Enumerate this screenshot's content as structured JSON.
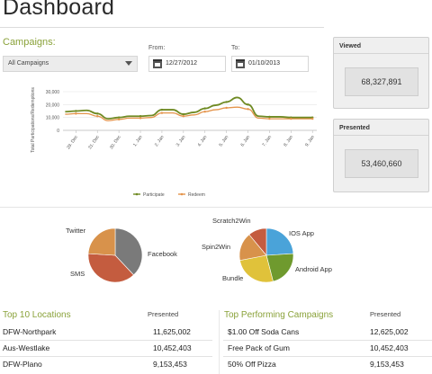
{
  "page": {
    "title": "Dashboard"
  },
  "campaigns": {
    "label": "Campaigns:",
    "selected": "All Campaigns",
    "from_label": "From:",
    "from_value": "12/27/2012",
    "to_label": "To:",
    "to_value": "01/10/2013"
  },
  "cards": {
    "viewed": {
      "title": "Viewed",
      "value": "68,327,891"
    },
    "presented": {
      "title": "Presented",
      "value": "53,460,660"
    }
  },
  "colors": {
    "accent": "#8aa23a",
    "participate": "#6f8a23",
    "redeem": "#e4944b"
  },
  "chart_data": {
    "type": "line",
    "categories": [
      "29. Dec",
      "31. Dec",
      "30. Dec",
      "1. Jan",
      "2. Jan",
      "3. Jan",
      "4. Jan",
      "5. Jan",
      "6. Jan",
      "7. Jan",
      "8. Jan",
      "9. Jan"
    ],
    "x_positions": [
      0,
      1,
      2,
      3,
      4,
      5,
      6,
      7,
      8,
      9,
      10,
      11
    ],
    "yticks": [
      "0",
      "10,000",
      "20,000",
      "30,000"
    ],
    "ylim": [
      0,
      30000
    ],
    "ylabel": "Total Participations/Redemptions",
    "xlabel": "",
    "grid": true,
    "legend": "bottom-center",
    "series": [
      {
        "name": "Participate",
        "x": [
          -0.5,
          0,
          0.5,
          1,
          1.5,
          2,
          2.5,
          3,
          3.5,
          4,
          4.5,
          5,
          5.5,
          6,
          6.5,
          7,
          7.5,
          8,
          8.5,
          9,
          9.5,
          10,
          10.5,
          11
        ],
        "values": [
          14500,
          15000,
          15500,
          13000,
          9000,
          10000,
          11000,
          11000,
          11500,
          16000,
          16000,
          12500,
          14000,
          17000,
          19500,
          22000,
          25500,
          20000,
          11000,
          10500,
          10500,
          10000,
          10000,
          10000
        ]
      },
      {
        "name": "Redeem",
        "x": [
          -0.5,
          0,
          0.5,
          1,
          1.5,
          2,
          2.5,
          3,
          3.5,
          4,
          4.5,
          5,
          5.5,
          6,
          6.5,
          7,
          7.5,
          8,
          8.5,
          9,
          9.5,
          10,
          10.5,
          11
        ],
        "values": [
          12500,
          13000,
          13000,
          11000,
          7500,
          8500,
          9500,
          9500,
          10000,
          13500,
          13500,
          11000,
          12000,
          14500,
          16000,
          17500,
          18000,
          16500,
          9500,
          9000,
          9000,
          9000,
          9000,
          9000
        ]
      }
    ]
  },
  "pies": [
    {
      "slices": [
        {
          "label": "Facebook",
          "value": 38,
          "color": "#7a7a7a"
        },
        {
          "label": "SMS",
          "value": 38,
          "color": "#c45c3f"
        },
        {
          "label": "Twitter",
          "value": 24,
          "color": "#d8924b"
        }
      ]
    },
    {
      "slices": [
        {
          "label": "IOS App",
          "value": 24,
          "color": "#4aa3d9"
        },
        {
          "label": "Android App",
          "value": 22,
          "color": "#6f9a2e"
        },
        {
          "label": "Bundle",
          "value": 26,
          "color": "#e0c23a"
        },
        {
          "label": "Spin2Win",
          "value": 17,
          "color": "#d8924b"
        },
        {
          "label": "Scratch2Win",
          "value": 11,
          "color": "#c45c3f"
        }
      ]
    }
  ],
  "locations": {
    "title": "Top 10 Locations",
    "column": "Presented",
    "rows": [
      {
        "name": "DFW-Northpark",
        "value": "11,625,002"
      },
      {
        "name": "Aus-Westlake",
        "value": "10,452,403"
      },
      {
        "name": "DFW-Plano",
        "value": "9,153,453"
      }
    ]
  },
  "top_campaigns": {
    "title": "Top Performing Campaigns",
    "column": "Presented",
    "rows": [
      {
        "name": "$1.00 Off Soda Cans",
        "value": "12,625,002"
      },
      {
        "name": "Free Pack of Gum",
        "value": "10,452,403"
      },
      {
        "name": "50% Off Pizza",
        "value": "9,153,453"
      }
    ]
  }
}
